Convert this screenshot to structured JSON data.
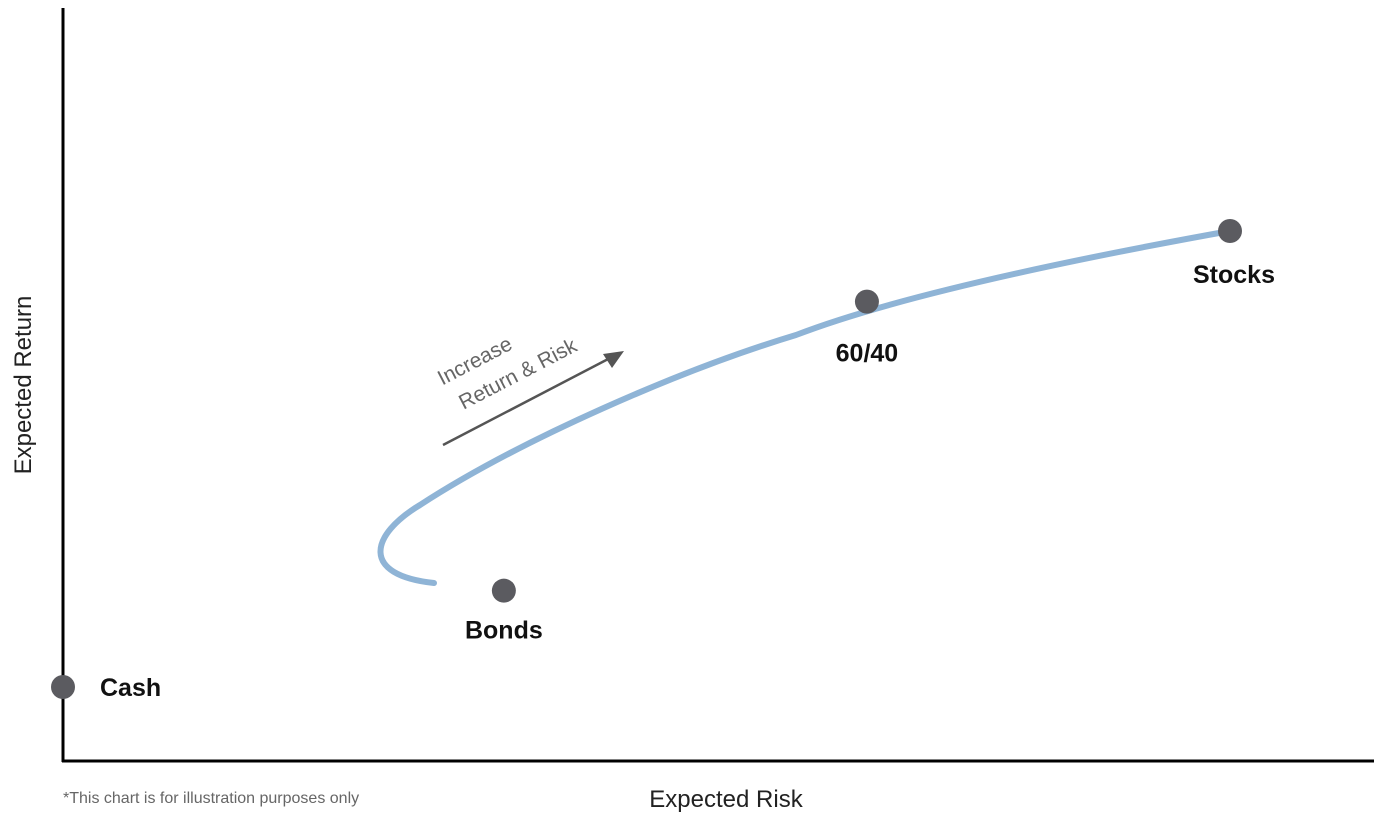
{
  "chart_data": {
    "type": "line",
    "xlabel": "Expected Risk",
    "ylabel": "Expected Return",
    "footnote": "*This chart is for illustration purposes only",
    "annotation": {
      "line1": "Increase",
      "line2": "Return & Risk"
    },
    "series": [
      {
        "curve": [
          [
            3.4,
            1.5
          ],
          [
            4.0,
            3.5
          ],
          [
            5.3,
            5.3
          ],
          [
            6.2,
            6.0
          ],
          [
            7.5,
            6.6
          ],
          [
            9.0,
            7.1
          ]
        ]
      }
    ],
    "points": [
      {
        "label": "Cash",
        "x": 0,
        "y": 0
      },
      {
        "label": "Bonds",
        "x": 3.4,
        "y": 1.5
      },
      {
        "label": "60/40",
        "x": 6.2,
        "y": 6.0
      },
      {
        "label": "Stocks",
        "x": 9.0,
        "y": 7.1
      }
    ],
    "colors": {
      "curve": "#8fb4d6",
      "point": "#5b5b60",
      "axis": "#000000",
      "arrow": "#555555"
    }
  }
}
